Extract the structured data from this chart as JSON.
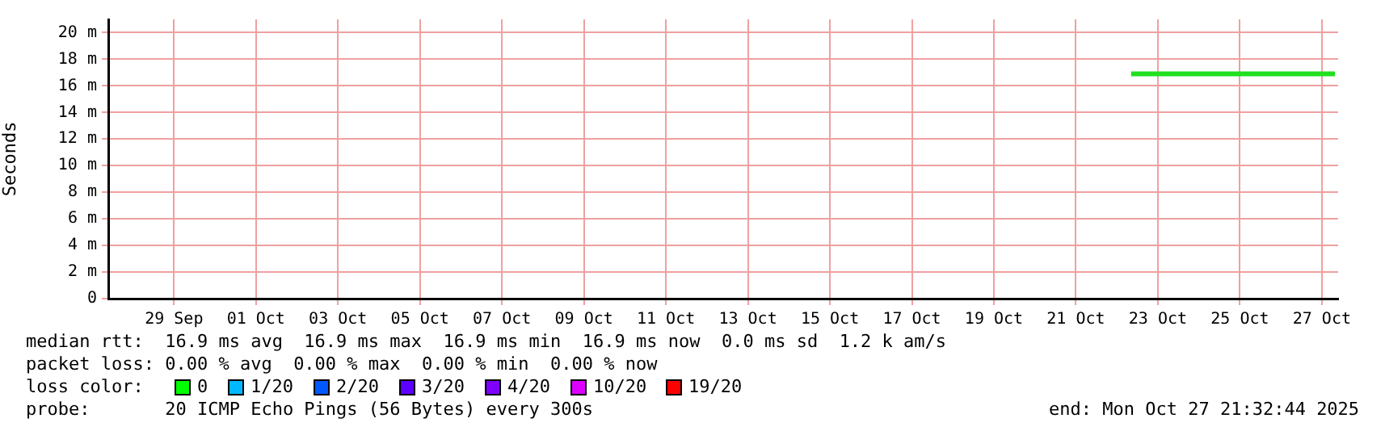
{
  "chart_data": {
    "type": "line",
    "ylabel": "Seconds",
    "xlim": [
      "2025-09-27T21:32",
      "2025-10-27T21:32"
    ],
    "xticks": [
      {
        "value": "2025-09-29T12:00",
        "label": "29 Sep"
      },
      {
        "value": "2025-10-01T12:00",
        "label": "01 Oct"
      },
      {
        "value": "2025-10-03T12:00",
        "label": "03 Oct"
      },
      {
        "value": "2025-10-05T12:00",
        "label": "05 Oct"
      },
      {
        "value": "2025-10-07T12:00",
        "label": "07 Oct"
      },
      {
        "value": "2025-10-09T12:00",
        "label": "09 Oct"
      },
      {
        "value": "2025-10-11T12:00",
        "label": "11 Oct"
      },
      {
        "value": "2025-10-13T12:00",
        "label": "13 Oct"
      },
      {
        "value": "2025-10-15T12:00",
        "label": "15 Oct"
      },
      {
        "value": "2025-10-17T12:00",
        "label": "17 Oct"
      },
      {
        "value": "2025-10-19T12:00",
        "label": "19 Oct"
      },
      {
        "value": "2025-10-21T12:00",
        "label": "21 Oct"
      },
      {
        "value": "2025-10-23T12:00",
        "label": "23 Oct"
      },
      {
        "value": "2025-10-25T12:00",
        "label": "25 Oct"
      },
      {
        "value": "2025-10-27T12:00",
        "label": "27 Oct"
      }
    ],
    "ylim": [
      0,
      21
    ],
    "yticks": [
      {
        "value": 0,
        "label": "0"
      },
      {
        "value": 2,
        "label": "2 m"
      },
      {
        "value": 4,
        "label": "4 m"
      },
      {
        "value": 6,
        "label": "6 m"
      },
      {
        "value": 8,
        "label": "8 m"
      },
      {
        "value": 10,
        "label": "10 m"
      },
      {
        "value": 12,
        "label": "12 m"
      },
      {
        "value": 14,
        "label": "14 m"
      },
      {
        "value": 16,
        "label": "16 m"
      },
      {
        "value": 18,
        "label": "18 m"
      },
      {
        "value": 20,
        "label": "20 m"
      }
    ],
    "x": [
      "2025-10-22T20:20",
      "2025-10-23T12:00",
      "2025-10-24T12:00",
      "2025-10-25T12:00",
      "2025-10-26T12:00",
      "2025-10-27T12:00",
      "2025-10-27T19:40"
    ],
    "series": [
      {
        "color": "#20e020",
        "values": [
          16.9,
          16.9,
          16.9,
          16.9,
          16.9,
          16.9,
          16.9
        ]
      }
    ],
    "grid": true,
    "legend": false,
    "marker": "none",
    "line_style": "solid",
    "annotations": [
      "median rtt:  16.9 ms avg  16.9 ms max  16.9 ms min  16.9 ms now  0.0 ms sd  1.2 k am/s",
      "packet loss: 0.00 % avg  0.00 % max  0.00 % min  0.00 % now",
      "loss color:",
      "0",
      "1/20",
      "2/20",
      "3/20",
      "4/20",
      "10/20",
      "19/20",
      "probe:       20 ICMP Echo Pings (56 Bytes) every 300s",
      "end: Mon Oct 27 21:32:44 2025"
    ]
  }
}
